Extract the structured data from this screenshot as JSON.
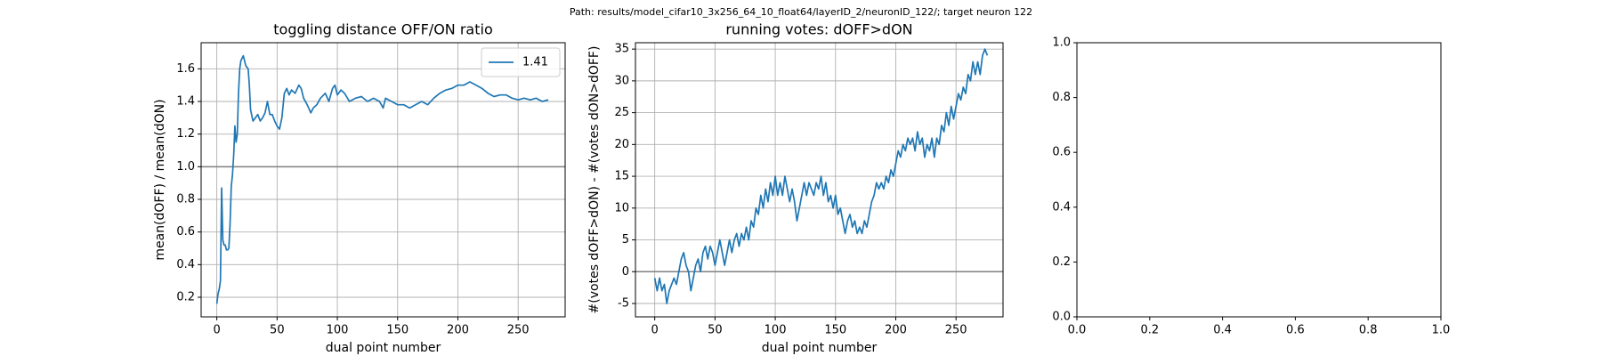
{
  "figure_title": "Path: results/model_cifar10_3x256_64_10_float64/layerID_2/neuronID_122/; target neuron 122",
  "chart_data": [
    {
      "type": "line",
      "title": "toggling distance OFF/ON ratio",
      "x_label": "dual point number",
      "y_label": "mean(dOFF) / mean(dON)",
      "xlim": [
        -13,
        289
      ],
      "ylim": [
        0.08,
        1.76
      ],
      "xticks": [
        0,
        50,
        100,
        150,
        200,
        250
      ],
      "yticks": [
        0.2,
        0.4,
        0.6,
        0.8,
        {
          "value": 1,
          "label": "1.0"
        },
        1.2,
        1.4,
        1.6
      ],
      "grid": true,
      "hline": 1,
      "legend": "upper right",
      "x": [
        0,
        1,
        2,
        3,
        4,
        5,
        6,
        7,
        8,
        9,
        10,
        11,
        12,
        13,
        14,
        15,
        16,
        17,
        18,
        19,
        20,
        22,
        24,
        26,
        27,
        28,
        30,
        32,
        34,
        36,
        38,
        40,
        42,
        44,
        46,
        48,
        50,
        52,
        54,
        56,
        58,
        60,
        62,
        65,
        68,
        70,
        72,
        75,
        78,
        80,
        83,
        86,
        90,
        93,
        96,
        98,
        100,
        103,
        106,
        110,
        115,
        120,
        125,
        130,
        135,
        138,
        140,
        145,
        150,
        155,
        160,
        165,
        170,
        175,
        180,
        185,
        190,
        195,
        200,
        205,
        210,
        215,
        220,
        225,
        230,
        235,
        240,
        245,
        250,
        255,
        260,
        265,
        270,
        275
      ],
      "series": [
        {
          "name": "1.41",
          "color": "#1f77b4",
          "values": [
            0.16,
            0.22,
            0.25,
            0.3,
            0.87,
            0.55,
            0.52,
            0.52,
            0.49,
            0.49,
            0.5,
            0.65,
            0.88,
            0.95,
            1.07,
            1.25,
            1.15,
            1.2,
            1.45,
            1.6,
            1.65,
            1.68,
            1.62,
            1.6,
            1.5,
            1.35,
            1.28,
            1.3,
            1.32,
            1.28,
            1.3,
            1.33,
            1.4,
            1.32,
            1.32,
            1.28,
            1.25,
            1.23,
            1.3,
            1.45,
            1.48,
            1.44,
            1.47,
            1.45,
            1.5,
            1.48,
            1.42,
            1.38,
            1.33,
            1.36,
            1.38,
            1.42,
            1.45,
            1.4,
            1.48,
            1.5,
            1.44,
            1.47,
            1.45,
            1.4,
            1.42,
            1.43,
            1.4,
            1.42,
            1.4,
            1.36,
            1.42,
            1.4,
            1.38,
            1.38,
            1.36,
            1.38,
            1.4,
            1.38,
            1.42,
            1.45,
            1.47,
            1.48,
            1.5,
            1.5,
            1.52,
            1.5,
            1.48,
            1.45,
            1.43,
            1.44,
            1.44,
            1.42,
            1.41,
            1.42,
            1.41,
            1.42,
            1.4,
            1.41
          ]
        }
      ]
    },
    {
      "type": "line",
      "title": "running votes: dOFF>dON",
      "x_label": "dual point number",
      "y_label": "#(votes dOFF>dON) - #(votes dON>dOFF)",
      "xlim": [
        -16,
        289
      ],
      "ylim": [
        -7.1,
        36
      ],
      "xticks": [
        0,
        50,
        100,
        150,
        200,
        250
      ],
      "yticks": [
        -5,
        0,
        5,
        10,
        15,
        20,
        25,
        30,
        35
      ],
      "grid": true,
      "hline": 0,
      "x": [
        0,
        2,
        4,
        6,
        8,
        10,
        12,
        14,
        16,
        18,
        20,
        22,
        24,
        26,
        28,
        30,
        32,
        34,
        36,
        38,
        40,
        42,
        44,
        46,
        48,
        50,
        52,
        54,
        56,
        58,
        60,
        62,
        64,
        66,
        68,
        70,
        72,
        74,
        76,
        78,
        80,
        82,
        84,
        86,
        88,
        90,
        92,
        94,
        96,
        98,
        100,
        102,
        104,
        106,
        108,
        110,
        112,
        114,
        116,
        118,
        120,
        122,
        124,
        126,
        128,
        130,
        132,
        134,
        136,
        138,
        140,
        142,
        144,
        146,
        148,
        150,
        152,
        154,
        156,
        158,
        160,
        162,
        164,
        166,
        168,
        170,
        172,
        174,
        176,
        178,
        180,
        182,
        184,
        186,
        188,
        190,
        192,
        194,
        196,
        198,
        200,
        202,
        204,
        206,
        208,
        210,
        212,
        214,
        216,
        218,
        220,
        222,
        224,
        226,
        228,
        230,
        232,
        234,
        236,
        238,
        240,
        242,
        244,
        246,
        248,
        250,
        252,
        254,
        256,
        258,
        260,
        262,
        264,
        266,
        268,
        270,
        272,
        274,
        276
      ],
      "series": [
        {
          "color": "#1f77b4",
          "values": [
            -1,
            -3,
            -1,
            -3,
            -2,
            -5,
            -3,
            -2,
            -1,
            -2,
            0,
            2,
            3,
            1,
            0,
            -3,
            -1,
            1,
            2,
            0,
            3,
            4,
            2,
            4,
            3,
            1,
            3,
            5,
            3,
            1,
            3,
            5,
            3,
            5,
            6,
            4,
            6,
            5,
            7,
            5,
            8,
            7,
            10,
            9,
            12,
            10,
            13,
            11,
            14,
            12,
            15,
            12,
            14,
            12,
            15,
            13,
            11,
            13,
            11,
            8,
            10,
            12,
            14,
            12,
            14,
            13,
            12,
            14,
            13,
            15,
            12,
            14,
            11,
            12,
            10,
            12,
            9,
            10,
            8,
            6,
            8,
            9,
            7,
            8,
            6,
            7,
            6,
            8,
            7,
            9,
            11,
            12,
            14,
            13,
            14,
            13,
            15,
            14,
            16,
            15,
            17,
            19,
            18,
            20,
            19,
            21,
            20,
            21,
            19,
            22,
            20,
            21,
            18,
            20,
            19,
            21,
            18,
            21,
            20,
            23,
            22,
            25,
            23,
            26,
            24,
            26,
            28,
            27,
            29,
            28,
            31,
            30,
            33,
            31,
            33,
            31,
            34,
            35,
            34
          ]
        }
      ]
    },
    {
      "type": "empty",
      "xlim": [
        0,
        1
      ],
      "ylim": [
        0,
        1
      ],
      "xticks": [
        {
          "value": 0,
          "label": "0.0"
        },
        0.2,
        0.4,
        0.6,
        0.8,
        {
          "value": 1,
          "label": "1.0"
        }
      ],
      "yticks": [
        {
          "value": 0,
          "label": "0.0"
        },
        0.2,
        0.4,
        0.6,
        0.8,
        {
          "value": 1,
          "label": "1.0"
        }
      ]
    }
  ]
}
